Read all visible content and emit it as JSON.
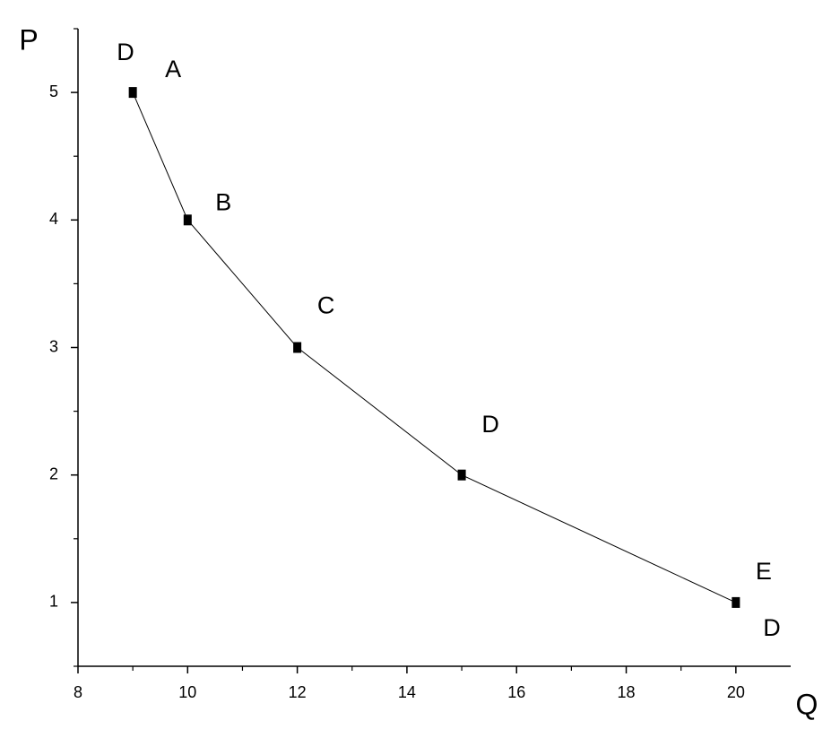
{
  "chart_data": {
    "type": "line",
    "x": [
      9,
      10,
      12,
      15,
      20
    ],
    "values": [
      5,
      4,
      3,
      2,
      1
    ],
    "point_labels": [
      "A",
      "B",
      "C",
      "D",
      "E"
    ],
    "annotations": [
      "D",
      "D"
    ],
    "x_label": "Q",
    "y_label": "P",
    "xlim": [
      8,
      21
    ],
    "xticks": [
      8,
      10,
      12,
      14,
      16,
      18,
      20
    ],
    "ylim": [
      0.5,
      5.5
    ],
    "yticks": [
      1,
      2,
      3,
      4,
      5
    ],
    "color": "#000000",
    "grid": false
  }
}
